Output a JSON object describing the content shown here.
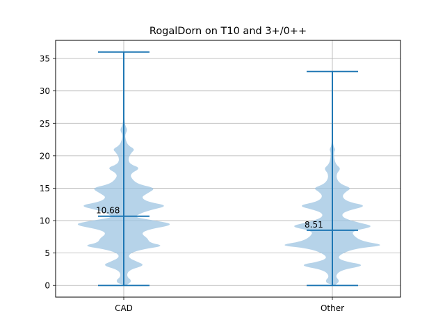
{
  "chart_data": {
    "type": "violin",
    "title": "RogalDorn on T10 and 3+/0++",
    "xlabel": "",
    "ylabel": "",
    "categories": [
      "CAD",
      "Other"
    ],
    "ylim": [
      -1.8,
      37.8
    ],
    "yticks": [
      0,
      5,
      10,
      15,
      20,
      25,
      30,
      35
    ],
    "grid": true,
    "color": "#1f77b4",
    "fill_color": "#9ec4e2",
    "series": [
      {
        "category": "CAD",
        "min": 0,
        "max": 36,
        "mean": 10.68,
        "mean_label": "10.68",
        "density": [
          [
            0,
            0.05
          ],
          [
            0.7,
            0.2
          ],
          [
            1.4,
            0.06
          ],
          [
            2.4,
            0.12
          ],
          [
            3.1,
            0.5
          ],
          [
            3.7,
            0.3
          ],
          [
            4.3,
            0.1
          ],
          [
            5.0,
            0.15
          ],
          [
            5.6,
            0.45
          ],
          [
            6.1,
            0.95
          ],
          [
            6.6,
            0.6
          ],
          [
            7.3,
            0.55
          ],
          [
            8.0,
            0.4
          ],
          [
            8.6,
            0.55
          ],
          [
            9.4,
            1.2
          ],
          [
            10.0,
            0.75
          ],
          [
            10.5,
            0.25
          ],
          [
            11.0,
            0.35
          ],
          [
            11.6,
            0.6
          ],
          [
            12.3,
            1.05
          ],
          [
            12.9,
            0.55
          ],
          [
            13.6,
            0.4
          ],
          [
            14.2,
            0.55
          ],
          [
            15.0,
            0.75
          ],
          [
            15.6,
            0.35
          ],
          [
            16.3,
            0.2
          ],
          [
            17.2,
            0.14
          ],
          [
            18.1,
            0.4
          ],
          [
            18.7,
            0.14
          ],
          [
            19.6,
            0.1
          ],
          [
            20.5,
            0.18
          ],
          [
            21.0,
            0.26
          ],
          [
            21.6,
            0.1
          ],
          [
            22.5,
            0.04
          ],
          [
            23.3,
            0.03
          ],
          [
            24.0,
            0.09
          ],
          [
            24.7,
            0.03
          ],
          [
            26.0,
            0.01
          ],
          [
            36,
            0.0
          ]
        ]
      },
      {
        "category": "Other",
        "min": 0,
        "max": 33,
        "mean": 8.51,
        "mean_label": "8.51",
        "density": [
          [
            0,
            0.05
          ],
          [
            0.7,
            0.18
          ],
          [
            1.4,
            0.06
          ],
          [
            2.4,
            0.2
          ],
          [
            3.1,
            0.8
          ],
          [
            3.7,
            0.3
          ],
          [
            4.3,
            0.1
          ],
          [
            5.2,
            0.3
          ],
          [
            5.8,
            0.65
          ],
          [
            6.2,
            1.25
          ],
          [
            6.8,
            0.7
          ],
          [
            7.6,
            0.5
          ],
          [
            8.4,
            0.45
          ],
          [
            9.1,
            1.0
          ],
          [
            9.7,
            0.6
          ],
          [
            10.4,
            0.25
          ],
          [
            11.1,
            0.22
          ],
          [
            11.6,
            0.4
          ],
          [
            12.3,
            0.82
          ],
          [
            12.9,
            0.35
          ],
          [
            13.7,
            0.22
          ],
          [
            14.4,
            0.3
          ],
          [
            15.0,
            0.45
          ],
          [
            15.6,
            0.2
          ],
          [
            16.4,
            0.1
          ],
          [
            17.3,
            0.1
          ],
          [
            18.0,
            0.2
          ],
          [
            18.7,
            0.08
          ],
          [
            19.7,
            0.04
          ],
          [
            20.6,
            0.04
          ],
          [
            21.0,
            0.07
          ],
          [
            21.5,
            0.02
          ],
          [
            23.0,
            0.01
          ],
          [
            33,
            0.0
          ]
        ]
      }
    ]
  }
}
